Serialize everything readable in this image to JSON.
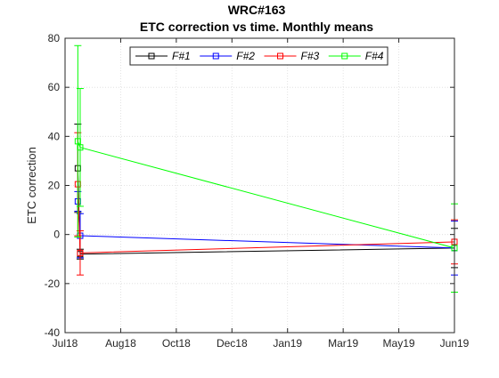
{
  "chart_data": {
    "type": "line",
    "title": "WRC#163",
    "subtitle": "ETC correction vs time. Monthly means",
    "xlabel": "",
    "ylabel": "ETC correction",
    "x_ticks": [
      "Jul18",
      "Aug18",
      "Oct18",
      "Dec18",
      "Jan19",
      "Mar19",
      "May19",
      "Jun19"
    ],
    "xlim": [
      "2018-07-01",
      "2019-06-01"
    ],
    "ylim": [
      -40,
      80
    ],
    "y_ticks": [
      -40,
      -20,
      0,
      20,
      40,
      60,
      80
    ],
    "grid": true,
    "legend_position": "top",
    "series": [
      {
        "name": "F#1",
        "color": "#000000",
        "points": [
          {
            "x": "2018-07-12",
            "y": 27,
            "err": 18
          },
          {
            "x": "2018-07-14",
            "y": -8,
            "err": 2
          },
          {
            "x": "2019-06-01",
            "y": -5.5,
            "err": 8
          }
        ]
      },
      {
        "name": "F#2",
        "color": "#0000ff",
        "points": [
          {
            "x": "2018-07-12",
            "y": 13.5,
            "err": 4
          },
          {
            "x": "2018-07-14",
            "y": -0.5,
            "err": 9
          },
          {
            "x": "2019-06-01",
            "y": -5.5,
            "err": 11
          }
        ]
      },
      {
        "name": "F#3",
        "color": "#ff0000",
        "points": [
          {
            "x": "2018-07-12",
            "y": 20.5,
            "err": 21
          },
          {
            "x": "2018-07-14",
            "y": -7.5,
            "err": 9
          },
          {
            "x": "2019-06-01",
            "y": -3,
            "err": 9
          }
        ]
      },
      {
        "name": "F#4",
        "color": "#00ff00",
        "points": [
          {
            "x": "2018-07-12",
            "y": 38,
            "err": 39
          },
          {
            "x": "2018-07-14",
            "y": 35.5,
            "err": 24
          },
          {
            "x": "2019-06-01",
            "y": -5.5,
            "err": 18
          }
        ]
      }
    ]
  }
}
